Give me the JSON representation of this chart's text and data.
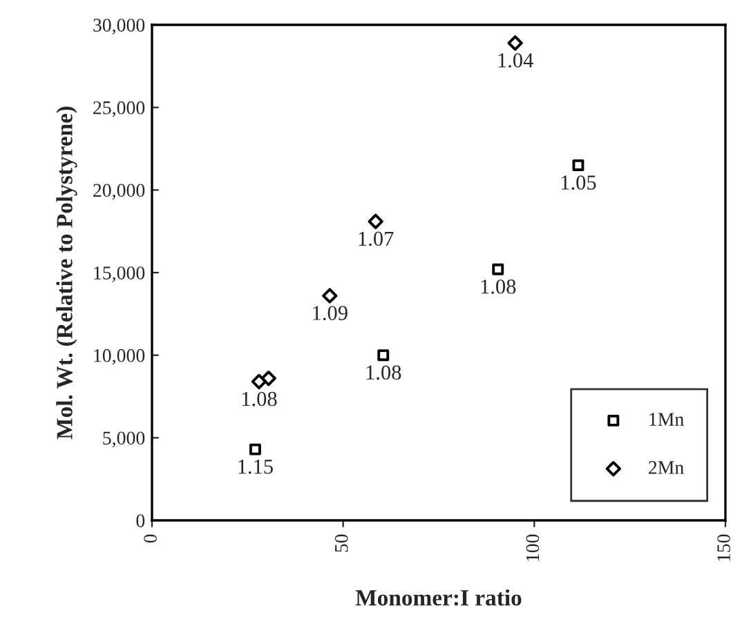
{
  "chart_data": {
    "type": "scatter",
    "xlabel": "Monomer:I ratio",
    "ylabel": "Mol. Wt. (Relative to Polystyrene)",
    "series": [
      {
        "name": "1Mn",
        "color": "#000000",
        "marker": "square",
        "x": [
          27,
          60.5,
          90.5,
          111.5
        ],
        "values": [
          4300,
          10000,
          15200,
          21500
        ]
      },
      {
        "name": "2Mn",
        "color": "#000000",
        "marker": "diamond",
        "x": [
          28,
          30.5,
          46.5,
          58.5,
          95
        ],
        "values": [
          8400,
          8600,
          13600,
          18100,
          28900
        ]
      }
    ],
    "xlim": [
      0,
      150
    ],
    "xticks": [
      0,
      50,
      100,
      150
    ],
    "ylim": [
      0,
      30000
    ],
    "yticks": [
      {
        "value": 0,
        "label": "0"
      },
      {
        "value": 5000,
        "label": "5,000"
      },
      {
        "value": 10000,
        "label": "10,000"
      },
      {
        "value": 15000,
        "label": "15,000"
      },
      {
        "value": 20000,
        "label": "20,000"
      },
      {
        "value": 25000,
        "label": "25,000"
      },
      {
        "value": 30000,
        "label": "30,000"
      }
    ],
    "annotations": [
      {
        "text": "1.15",
        "x": 27,
        "y": 4300
      },
      {
        "text": "1.08",
        "x": 60.5,
        "y": 10000
      },
      {
        "text": "1.08",
        "x": 90.5,
        "y": 15200
      },
      {
        "text": "1.05",
        "x": 111.5,
        "y": 21500
      },
      {
        "text": "1.08",
        "x": 28,
        "y": 8400
      },
      {
        "text": "1.09",
        "x": 46.5,
        "y": 13600
      },
      {
        "text": "1.07",
        "x": 58.5,
        "y": 18100
      },
      {
        "text": "1.04",
        "x": 95,
        "y": 28900
      }
    ],
    "grid": false,
    "legend": "bottom right"
  }
}
